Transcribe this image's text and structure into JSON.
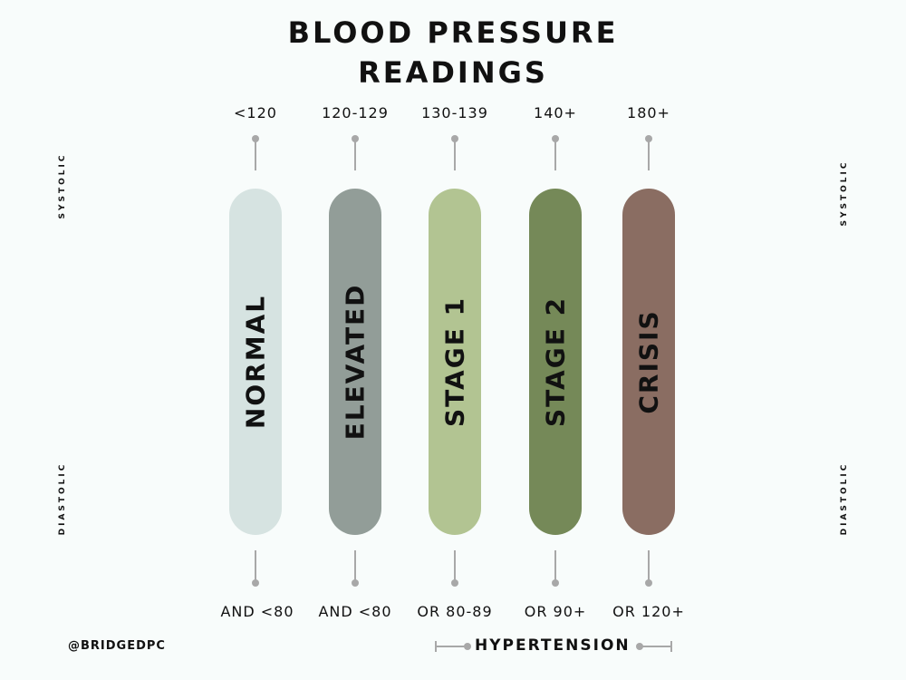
{
  "title": {
    "line1": "BLOOD PRESSURE",
    "line2": "READINGS"
  },
  "axis_labels": {
    "systolic_left": "SYSTOLIC",
    "diastolic_left": "DIASTOLIC",
    "systolic_right": "SYSTOLIC",
    "diastolic_right": "DIASTOLIC"
  },
  "categories": [
    {
      "name": "NORMAL",
      "systolic": "<120",
      "diastolic": "AND <80",
      "color": "#d6e3e1"
    },
    {
      "name": "ELEVATED",
      "systolic": "120-129",
      "diastolic": "AND <80",
      "color": "#929d98"
    },
    {
      "name": "STAGE 1",
      "systolic": "130-139",
      "diastolic": "OR 80-89",
      "color": "#b2c492"
    },
    {
      "name": "STAGE 2",
      "systolic": "140+",
      "diastolic": "OR 90+",
      "color": "#758958"
    },
    {
      "name": "CRISIS",
      "systolic": "180+",
      "diastolic": "OR 120+",
      "color": "#8a6d62"
    }
  ],
  "footer": {
    "handle": "@BRIDGEDPC",
    "hypertension": "HYPERTENSION"
  },
  "connector_color": "#a8a8a8",
  "background_color": "#f8fcfb"
}
